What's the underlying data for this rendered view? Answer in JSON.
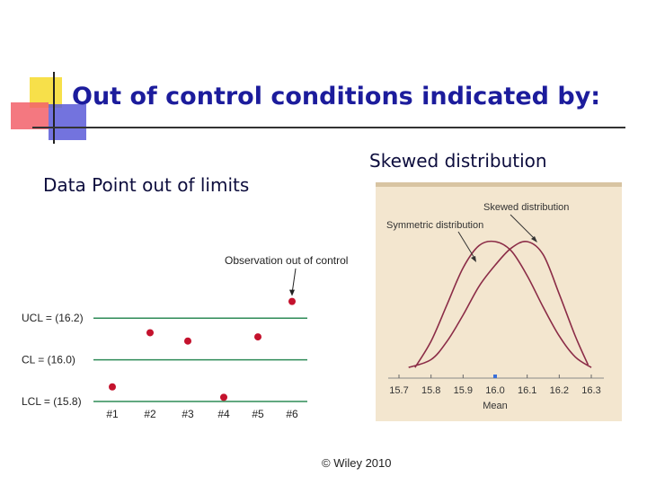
{
  "slide": {
    "title": "Out of control conditions indicated by:",
    "left_heading": "Data Point out of limits",
    "right_heading": "Skewed distribution",
    "copyright": "© Wiley 2010"
  },
  "colors": {
    "title": "#1c1c9c",
    "control_line": "#2e8b57",
    "point": "#c4122d",
    "curve": "#8b2c47",
    "panel_bg": "#f3e6cf"
  },
  "chart_data": [
    {
      "type": "scatter",
      "title": "",
      "categories": [
        "#1",
        "#2",
        "#3",
        "#4",
        "#5",
        "#6"
      ],
      "values": [
        15.87,
        16.13,
        16.09,
        15.82,
        16.11,
        16.28
      ],
      "limits": [
        {
          "label": "UCL = (16.2)",
          "value": 16.2
        },
        {
          "label": "CL = (16.0)",
          "value": 16.0
        },
        {
          "label": "LCL = (15.8)",
          "value": 15.8
        }
      ],
      "annotation": {
        "text": "Observation out of control",
        "point_index": 5
      },
      "ylim": [
        15.75,
        16.32
      ],
      "grid": false
    },
    {
      "type": "line",
      "title": "",
      "xlabel": "Mean",
      "x_ticks": [
        "15.7",
        "15.8",
        "15.9",
        "16.0",
        "16.1",
        "16.2",
        "16.3"
      ],
      "xlim": [
        15.67,
        16.33
      ],
      "series": [
        {
          "name": "Symmetric distribution",
          "points": [
            [
              15.75,
              0.04
            ],
            [
              15.8,
              0.24
            ],
            [
              15.85,
              0.52
            ],
            [
              15.9,
              0.8
            ],
            [
              15.95,
              0.97
            ],
            [
              16.0,
              1.0
            ],
            [
              16.05,
              0.93
            ],
            [
              16.1,
              0.74
            ],
            [
              16.15,
              0.5
            ],
            [
              16.2,
              0.28
            ],
            [
              16.25,
              0.12
            ],
            [
              16.3,
              0.04
            ]
          ]
        },
        {
          "name": "Skewed distribution",
          "points": [
            [
              15.73,
              0.04
            ],
            [
              15.8,
              0.1
            ],
            [
              15.85,
              0.24
            ],
            [
              15.9,
              0.44
            ],
            [
              15.95,
              0.66
            ],
            [
              16.0,
              0.82
            ],
            [
              16.05,
              0.95
            ],
            [
              16.1,
              1.0
            ],
            [
              16.15,
              0.9
            ],
            [
              16.2,
              0.6
            ],
            [
              16.25,
              0.28
            ],
            [
              16.29,
              0.06
            ]
          ]
        }
      ],
      "grid": false
    }
  ]
}
